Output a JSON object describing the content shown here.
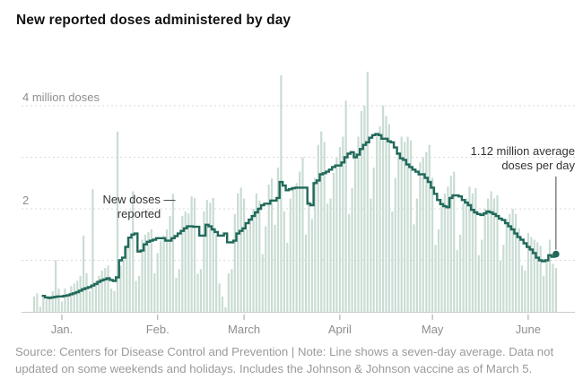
{
  "title": "New reported doses administered by day",
  "y_axis": {
    "top_label": "4 million doses",
    "mid_label": "2",
    "gridline_values": [
      4,
      3,
      2,
      1
    ]
  },
  "x_axis": {
    "month_labels": [
      "Jan.",
      "Feb.",
      "March",
      "April",
      "May",
      "June"
    ],
    "month_day_indices": [
      9,
      40,
      68,
      99,
      129,
      160
    ]
  },
  "annotations": {
    "new_doses": {
      "line1": "New doses —",
      "line2": "reported"
    },
    "average": {
      "line1": "1.12 million average",
      "line2": "doses per day"
    }
  },
  "source_note": {
    "line1": "Source: Centers for Disease Control and Prevention | Note: Line shows a seven-day average. Data not",
    "line2": "updated on some weekends and holidays. Includes the Johnson & Johnson vaccine as of March 5."
  },
  "colors": {
    "bar": "#c9dcd3",
    "line": "#20695a",
    "grid": "#dadada",
    "baseline": "#cccccc",
    "tick": "#b3b3b3",
    "annotation_line": "#444444"
  },
  "chart_data": {
    "type": "bar",
    "title": "New reported doses administered by day",
    "unit": "million doses",
    "start_date": "2020-12-23",
    "end_date": "2021-06-10",
    "ylim": [
      0,
      4.8
    ],
    "grid": "dashed horizontal at 1,2,3,4 million",
    "legend_position": "none",
    "last_point_label": "1.12 million average doses per day",
    "series": [
      {
        "name": "New doses reported (daily)",
        "type": "bar",
        "values": [
          0.3,
          0.36,
          0.1,
          0.28,
          0.24,
          0.3,
          0.4,
          1.0,
          0.45,
          0.2,
          0.45,
          0.3,
          0.5,
          0.55,
          0.6,
          0.7,
          1.48,
          0.75,
          0.4,
          2.38,
          0.6,
          0.7,
          0.8,
          0.85,
          0.9,
          0.45,
          0.4,
          3.5,
          0.9,
          1.0,
          1.3,
          1.4,
          2.34,
          0.6,
          0.7,
          1.4,
          1.5,
          1.55,
          1.6,
          0.75,
          1.14,
          1.38,
          1.48,
          1.6,
          1.86,
          2.29,
          0.66,
          0.83,
          1.86,
          1.95,
          1.91,
          2.24,
          2.21,
          0.74,
          0.83,
          1.95,
          2.17,
          2.12,
          2.21,
          1.5,
          0.55,
          0.3,
          0.09,
          0.75,
          0.83,
          1.9,
          2.3,
          2.41,
          2.2,
          1.6,
          1.8,
          2.0,
          2.3,
          2.16,
          1.12,
          1.66,
          2.47,
          2.59,
          1.69,
          2.8,
          4.59,
          1.95,
          1.34,
          2.2,
          2.4,
          2.5,
          2.72,
          3.0,
          1.5,
          2.16,
          1.8,
          2.6,
          3.24,
          3.5,
          3.3,
          2.1,
          2.2,
          2.7,
          3.0,
          3.2,
          3.4,
          4.1,
          1.9,
          2.4,
          3.1,
          3.4,
          3.9,
          4.0,
          4.66,
          2.2,
          2.8,
          3.4,
          3.6,
          4.0,
          3.8,
          3.64,
          1.95,
          2.6,
          3.1,
          3.4,
          3.3,
          3.4,
          3.33,
          1.7,
          2.2,
          2.9,
          3.0,
          3.1,
          3.24,
          2.6,
          1.3,
          1.6,
          2.2,
          2.3,
          2.43,
          2.64,
          2.72,
          1.2,
          1.5,
          2.1,
          2.2,
          2.43,
          2.3,
          2.4,
          1.1,
          1.4,
          2.0,
          2.2,
          2.34,
          2.2,
          2.26,
          1.0,
          1.3,
          1.8,
          1.9,
          2.0,
          1.9,
          1.62,
          0.9,
          0.8,
          1.53,
          1.45,
          1.4,
          1.35,
          1.28,
          0.7,
          1.0,
          1.4,
          0.93,
          0.85
        ]
      },
      {
        "name": "Seven-day average",
        "type": "line",
        "values": [
          null,
          null,
          null,
          0.31,
          0.28,
          0.27,
          0.28,
          0.29,
          0.3,
          0.3,
          0.31,
          0.32,
          0.34,
          0.36,
          0.38,
          0.41,
          0.44,
          0.46,
          0.48,
          0.51,
          0.54,
          0.58,
          0.61,
          0.63,
          0.65,
          0.62,
          0.6,
          0.67,
          1.0,
          1.05,
          1.26,
          1.44,
          1.5,
          1.52,
          1.17,
          1.19,
          1.31,
          1.36,
          1.38,
          1.4,
          1.43,
          1.43,
          1.43,
          1.38,
          1.38,
          1.43,
          1.47,
          1.52,
          1.57,
          1.62,
          1.66,
          1.66,
          1.65,
          1.65,
          1.48,
          1.48,
          1.69,
          1.66,
          1.6,
          1.55,
          1.48,
          1.48,
          1.52,
          1.35,
          1.35,
          1.38,
          1.52,
          1.57,
          1.62,
          1.72,
          1.79,
          1.86,
          1.93,
          2.0,
          2.07,
          2.1,
          2.1,
          2.16,
          2.16,
          2.21,
          2.52,
          2.45,
          2.36,
          2.38,
          2.4,
          2.41,
          2.41,
          2.41,
          2.41,
          2.1,
          2.07,
          2.5,
          2.55,
          2.67,
          2.69,
          2.72,
          2.76,
          2.81,
          2.84,
          2.84,
          2.9,
          3.0,
          3.07,
          3.1,
          3.0,
          3.05,
          3.16,
          3.24,
          3.29,
          3.38,
          3.43,
          3.45,
          3.43,
          3.36,
          3.36,
          3.31,
          3.29,
          3.19,
          3.07,
          2.98,
          2.95,
          2.86,
          2.81,
          2.76,
          2.72,
          2.67,
          2.67,
          2.6,
          2.52,
          2.41,
          2.29,
          2.17,
          2.09,
          2.05,
          2.03,
          2.21,
          2.26,
          2.26,
          2.24,
          2.17,
          2.12,
          2.07,
          1.98,
          1.93,
          1.9,
          1.88,
          1.91,
          1.95,
          1.93,
          1.9,
          1.86,
          1.81,
          1.78,
          1.72,
          1.66,
          1.6,
          1.52,
          1.45,
          1.4,
          1.33,
          1.26,
          1.21,
          1.14,
          1.05,
          1.0,
          0.98,
          1.0,
          1.1,
          1.07,
          1.12
        ]
      }
    ]
  }
}
